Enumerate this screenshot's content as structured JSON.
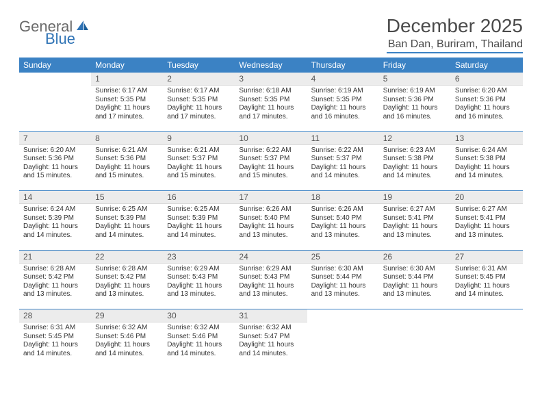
{
  "logo": {
    "general": "General",
    "blue": "Blue"
  },
  "title": "December 2025",
  "location": "Ban Dan, Buriram, Thailand",
  "headers": [
    "Sunday",
    "Monday",
    "Tuesday",
    "Wednesday",
    "Thursday",
    "Friday",
    "Saturday"
  ],
  "colors": {
    "accent": "#3b82c4",
    "header_bg": "#3b82c4",
    "header_text": "#ffffff",
    "daynum_bg": "#ececec",
    "text": "#333333",
    "logo_gray": "#6a6a6a",
    "logo_blue": "#2f73b5"
  },
  "weeks": [
    [
      {
        "n": "",
        "sr": "",
        "ss": "",
        "dl": ""
      },
      {
        "n": "1",
        "sr": "Sunrise: 6:17 AM",
        "ss": "Sunset: 5:35 PM",
        "dl": "Daylight: 11 hours and 17 minutes."
      },
      {
        "n": "2",
        "sr": "Sunrise: 6:17 AM",
        "ss": "Sunset: 5:35 PM",
        "dl": "Daylight: 11 hours and 17 minutes."
      },
      {
        "n": "3",
        "sr": "Sunrise: 6:18 AM",
        "ss": "Sunset: 5:35 PM",
        "dl": "Daylight: 11 hours and 17 minutes."
      },
      {
        "n": "4",
        "sr": "Sunrise: 6:19 AM",
        "ss": "Sunset: 5:35 PM",
        "dl": "Daylight: 11 hours and 16 minutes."
      },
      {
        "n": "5",
        "sr": "Sunrise: 6:19 AM",
        "ss": "Sunset: 5:36 PM",
        "dl": "Daylight: 11 hours and 16 minutes."
      },
      {
        "n": "6",
        "sr": "Sunrise: 6:20 AM",
        "ss": "Sunset: 5:36 PM",
        "dl": "Daylight: 11 hours and 16 minutes."
      }
    ],
    [
      {
        "n": "7",
        "sr": "Sunrise: 6:20 AM",
        "ss": "Sunset: 5:36 PM",
        "dl": "Daylight: 11 hours and 15 minutes."
      },
      {
        "n": "8",
        "sr": "Sunrise: 6:21 AM",
        "ss": "Sunset: 5:36 PM",
        "dl": "Daylight: 11 hours and 15 minutes."
      },
      {
        "n": "9",
        "sr": "Sunrise: 6:21 AM",
        "ss": "Sunset: 5:37 PM",
        "dl": "Daylight: 11 hours and 15 minutes."
      },
      {
        "n": "10",
        "sr": "Sunrise: 6:22 AM",
        "ss": "Sunset: 5:37 PM",
        "dl": "Daylight: 11 hours and 15 minutes."
      },
      {
        "n": "11",
        "sr": "Sunrise: 6:22 AM",
        "ss": "Sunset: 5:37 PM",
        "dl": "Daylight: 11 hours and 14 minutes."
      },
      {
        "n": "12",
        "sr": "Sunrise: 6:23 AM",
        "ss": "Sunset: 5:38 PM",
        "dl": "Daylight: 11 hours and 14 minutes."
      },
      {
        "n": "13",
        "sr": "Sunrise: 6:24 AM",
        "ss": "Sunset: 5:38 PM",
        "dl": "Daylight: 11 hours and 14 minutes."
      }
    ],
    [
      {
        "n": "14",
        "sr": "Sunrise: 6:24 AM",
        "ss": "Sunset: 5:39 PM",
        "dl": "Daylight: 11 hours and 14 minutes."
      },
      {
        "n": "15",
        "sr": "Sunrise: 6:25 AM",
        "ss": "Sunset: 5:39 PM",
        "dl": "Daylight: 11 hours and 14 minutes."
      },
      {
        "n": "16",
        "sr": "Sunrise: 6:25 AM",
        "ss": "Sunset: 5:39 PM",
        "dl": "Daylight: 11 hours and 14 minutes."
      },
      {
        "n": "17",
        "sr": "Sunrise: 6:26 AM",
        "ss": "Sunset: 5:40 PM",
        "dl": "Daylight: 11 hours and 13 minutes."
      },
      {
        "n": "18",
        "sr": "Sunrise: 6:26 AM",
        "ss": "Sunset: 5:40 PM",
        "dl": "Daylight: 11 hours and 13 minutes."
      },
      {
        "n": "19",
        "sr": "Sunrise: 6:27 AM",
        "ss": "Sunset: 5:41 PM",
        "dl": "Daylight: 11 hours and 13 minutes."
      },
      {
        "n": "20",
        "sr": "Sunrise: 6:27 AM",
        "ss": "Sunset: 5:41 PM",
        "dl": "Daylight: 11 hours and 13 minutes."
      }
    ],
    [
      {
        "n": "21",
        "sr": "Sunrise: 6:28 AM",
        "ss": "Sunset: 5:42 PM",
        "dl": "Daylight: 11 hours and 13 minutes."
      },
      {
        "n": "22",
        "sr": "Sunrise: 6:28 AM",
        "ss": "Sunset: 5:42 PM",
        "dl": "Daylight: 11 hours and 13 minutes."
      },
      {
        "n": "23",
        "sr": "Sunrise: 6:29 AM",
        "ss": "Sunset: 5:43 PM",
        "dl": "Daylight: 11 hours and 13 minutes."
      },
      {
        "n": "24",
        "sr": "Sunrise: 6:29 AM",
        "ss": "Sunset: 5:43 PM",
        "dl": "Daylight: 11 hours and 13 minutes."
      },
      {
        "n": "25",
        "sr": "Sunrise: 6:30 AM",
        "ss": "Sunset: 5:44 PM",
        "dl": "Daylight: 11 hours and 13 minutes."
      },
      {
        "n": "26",
        "sr": "Sunrise: 6:30 AM",
        "ss": "Sunset: 5:44 PM",
        "dl": "Daylight: 11 hours and 13 minutes."
      },
      {
        "n": "27",
        "sr": "Sunrise: 6:31 AM",
        "ss": "Sunset: 5:45 PM",
        "dl": "Daylight: 11 hours and 14 minutes."
      }
    ],
    [
      {
        "n": "28",
        "sr": "Sunrise: 6:31 AM",
        "ss": "Sunset: 5:45 PM",
        "dl": "Daylight: 11 hours and 14 minutes."
      },
      {
        "n": "29",
        "sr": "Sunrise: 6:32 AM",
        "ss": "Sunset: 5:46 PM",
        "dl": "Daylight: 11 hours and 14 minutes."
      },
      {
        "n": "30",
        "sr": "Sunrise: 6:32 AM",
        "ss": "Sunset: 5:46 PM",
        "dl": "Daylight: 11 hours and 14 minutes."
      },
      {
        "n": "31",
        "sr": "Sunrise: 6:32 AM",
        "ss": "Sunset: 5:47 PM",
        "dl": "Daylight: 11 hours and 14 minutes."
      },
      {
        "n": "",
        "sr": "",
        "ss": "",
        "dl": ""
      },
      {
        "n": "",
        "sr": "",
        "ss": "",
        "dl": ""
      },
      {
        "n": "",
        "sr": "",
        "ss": "",
        "dl": ""
      }
    ]
  ]
}
